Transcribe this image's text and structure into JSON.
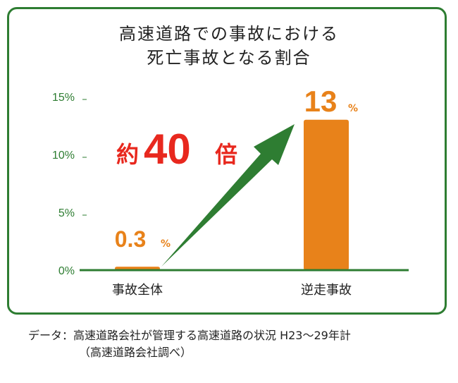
{
  "chart_data": {
    "type": "bar",
    "title_line1": "高速道路での事故における",
    "title_line2": "死亡事故となる割合",
    "categories": [
      "事故全体",
      "逆走事故"
    ],
    "values": [
      0.3,
      13
    ],
    "value_labels": [
      "0.3",
      "13"
    ],
    "unit": "%",
    "y_ticks": [
      "0%",
      "5%",
      "10%",
      "15%"
    ],
    "y_tick_values": [
      0,
      5,
      10,
      15
    ],
    "ylim": [
      0,
      15
    ],
    "annotation": {
      "prefix": "約",
      "number": "40",
      "suffix": "倍"
    },
    "colors": {
      "bar": "#e8821a",
      "axis": "#2e7d32",
      "annotation": "#e8281e",
      "arrow": "#2e7d32"
    }
  },
  "note": {
    "line1": "データ：高速道路会社が管理する高速道路の状況 H23〜29年計",
    "line2": "（高速道路会社調べ）"
  }
}
